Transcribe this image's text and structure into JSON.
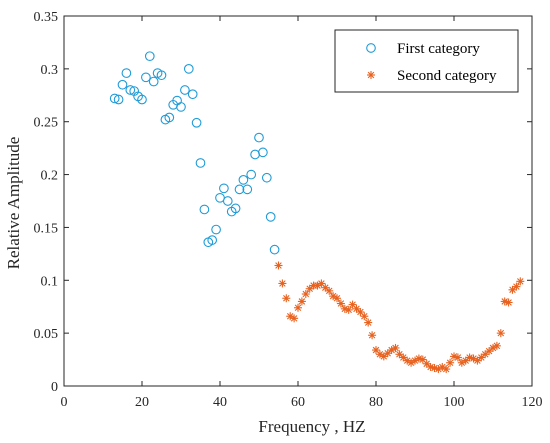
{
  "chart_data": {
    "type": "scatter",
    "title": "",
    "xlabel": "Frequency , HZ",
    "ylabel": "Relative Amplitude",
    "xlim": [
      0,
      120
    ],
    "ylim": [
      0,
      0.35
    ],
    "xticks": [
      0,
      20,
      40,
      60,
      80,
      100,
      120
    ],
    "yticks": [
      0,
      0.05,
      0.1,
      0.15,
      0.2,
      0.25,
      0.3,
      0.35
    ],
    "grid": false,
    "legend_position": "top-right",
    "series": [
      {
        "name": "First category",
        "marker": "circle",
        "color": "#1f9bd7",
        "x": [
          13,
          14,
          15,
          16,
          17,
          18,
          19,
          20,
          21,
          22,
          23,
          24,
          25,
          26,
          27,
          28,
          29,
          30,
          31,
          32,
          33,
          34,
          35,
          36,
          37,
          38,
          39,
          40,
          41,
          42,
          43,
          44,
          45,
          46,
          47,
          48,
          49,
          50,
          51,
          52,
          53,
          54
        ],
        "y": [
          0.272,
          0.271,
          0.285,
          0.296,
          0.28,
          0.279,
          0.274,
          0.271,
          0.292,
          0.312,
          0.288,
          0.296,
          0.294,
          0.252,
          0.254,
          0.266,
          0.27,
          0.264,
          0.28,
          0.3,
          0.276,
          0.249,
          0.211,
          0.167,
          0.136,
          0.138,
          0.148,
          0.178,
          0.187,
          0.175,
          0.165,
          0.168,
          0.186,
          0.195,
          0.186,
          0.2,
          0.219,
          0.235,
          0.221,
          0.197,
          0.16,
          0.129
        ]
      },
      {
        "name": "Second category",
        "marker": "asterisk",
        "color": "#e8621f",
        "x": [
          55,
          56,
          57,
          58,
          59,
          60,
          61,
          62,
          63,
          64,
          65,
          66,
          67,
          68,
          69,
          70,
          71,
          72,
          73,
          74,
          75,
          76,
          77,
          78,
          79,
          80,
          81,
          82,
          83,
          84,
          85,
          86,
          87,
          88,
          89,
          90,
          91,
          92,
          93,
          94,
          95,
          96,
          97,
          98,
          99,
          100,
          101,
          102,
          103,
          104,
          105,
          106,
          107,
          108,
          109,
          110,
          111,
          112,
          113,
          114,
          115,
          116,
          117
        ],
        "y": [
          0.114,
          0.097,
          0.083,
          0.066,
          0.064,
          0.074,
          0.08,
          0.087,
          0.092,
          0.095,
          0.095,
          0.097,
          0.093,
          0.09,
          0.085,
          0.083,
          0.078,
          0.073,
          0.072,
          0.077,
          0.073,
          0.07,
          0.066,
          0.06,
          0.048,
          0.034,
          0.03,
          0.028,
          0.031,
          0.034,
          0.036,
          0.03,
          0.027,
          0.024,
          0.022,
          0.024,
          0.026,
          0.025,
          0.021,
          0.018,
          0.017,
          0.016,
          0.018,
          0.016,
          0.022,
          0.028,
          0.027,
          0.022,
          0.024,
          0.027,
          0.026,
          0.024,
          0.027,
          0.03,
          0.033,
          0.036,
          0.038,
          0.05,
          0.08,
          0.079,
          0.091,
          0.094,
          0.099
        ]
      }
    ]
  }
}
